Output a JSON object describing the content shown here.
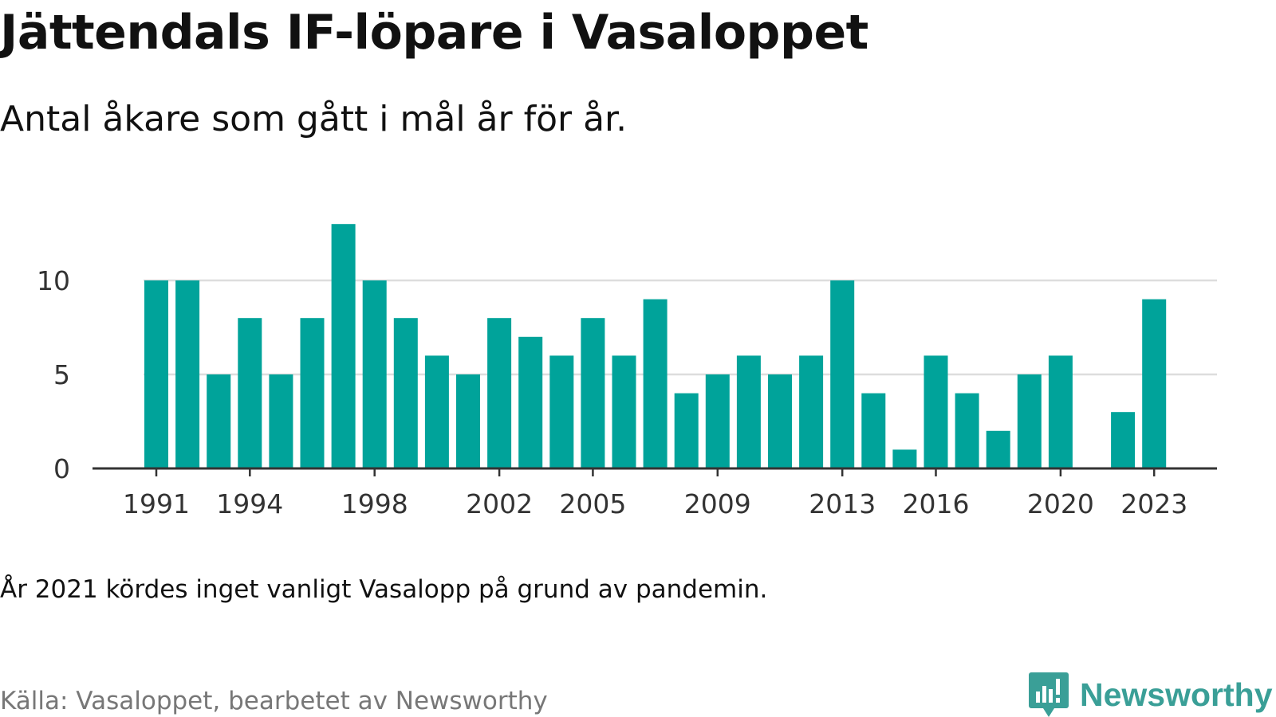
{
  "header": {
    "title": "Jättendals IF-löpare i Vasaloppet",
    "subtitle": "Antal åkare som gått i mål år för år."
  },
  "footer": {
    "note": "År 2021 kördes inget vanligt Vasalopp på grund av pandemin.",
    "source": "Källa: Vasaloppet, bearbetet av Newsworthy",
    "brand": "Newsworthy"
  },
  "colors": {
    "bar": "#00a39a",
    "grid": "#dddddd",
    "axis": "#333333",
    "brand": "#3a9f97"
  },
  "chart_data": {
    "type": "bar",
    "title": "Jättendals IF-löpare i Vasaloppet",
    "subtitle": "Antal åkare som gått i mål år för år.",
    "categories": [
      1991,
      1992,
      1993,
      1994,
      1995,
      1996,
      1997,
      1998,
      1999,
      2000,
      2001,
      2002,
      2003,
      2004,
      2005,
      2006,
      2007,
      2008,
      2009,
      2010,
      2011,
      2012,
      2013,
      2014,
      2015,
      2016,
      2017,
      2018,
      2019,
      2020,
      2021,
      2022,
      2023
    ],
    "values": [
      10,
      10,
      5,
      8,
      5,
      8,
      13,
      10,
      8,
      6,
      5,
      8,
      7,
      6,
      8,
      6,
      9,
      4,
      5,
      6,
      5,
      6,
      10,
      4,
      1,
      6,
      4,
      2,
      5,
      6,
      null,
      3,
      9
    ],
    "x_tick_labels": [
      "1991",
      "1994",
      "1998",
      "2002",
      "2005",
      "2009",
      "2013",
      "2016",
      "2020",
      "2023"
    ],
    "y_ticks": [
      0,
      5,
      10
    ],
    "ylim": [
      0,
      13
    ],
    "grid": true,
    "legend": "none"
  }
}
